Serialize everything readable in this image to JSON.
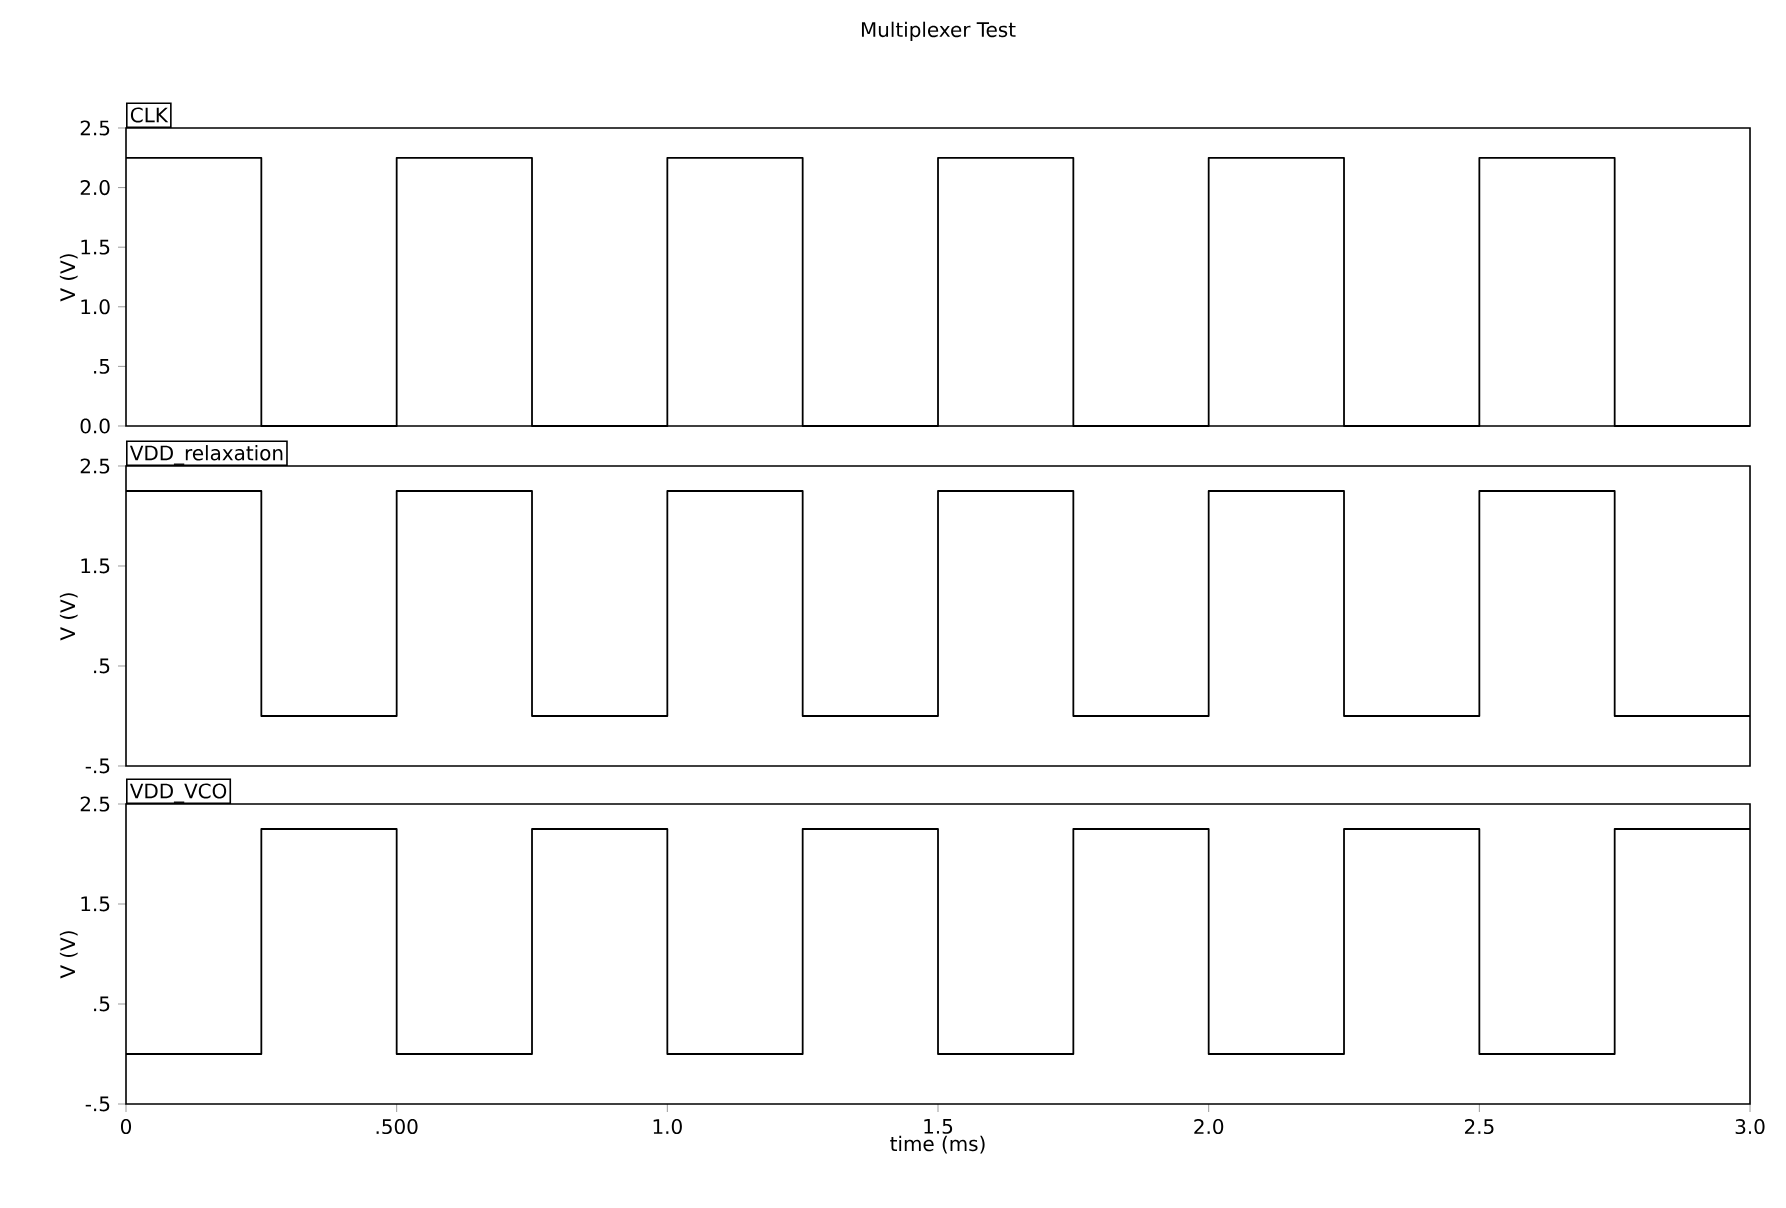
{
  "chart_data": [
    {
      "type": "step",
      "title": "Multiplexer Test",
      "ylabel": "V (V)",
      "tick_labels": "y",
      "xlim": [
        0,
        3.0
      ],
      "ylim": [
        0,
        2.5
      ],
      "yticks": [
        {
          "value": 0,
          "label": "0.0"
        },
        {
          "value": 0.5,
          "label": ".5"
        },
        {
          "value": 1.0,
          "label": "1.0"
        },
        {
          "value": 1.5,
          "label": "1.5"
        },
        {
          "value": 2.0,
          "label": "2.0"
        },
        {
          "value": 2.5,
          "label": "2.5"
        }
      ],
      "series": [
        {
          "name": "CLK",
          "color": "#000000",
          "x": [
            0,
            0.25,
            0.5,
            0.75,
            1.0,
            1.25,
            1.5,
            1.75,
            2.0,
            2.25,
            2.5,
            2.75,
            3.0
          ],
          "values": [
            2.25,
            0,
            2.25,
            0,
            2.25,
            0,
            2.25,
            0,
            2.25,
            0,
            2.25,
            0,
            0
          ]
        }
      ]
    },
    {
      "type": "step",
      "ylabel": "V (V)",
      "tick_labels": "y",
      "xlim": [
        0,
        3.0
      ],
      "ylim": [
        -0.5,
        2.5
      ],
      "yticks": [
        {
          "value": -0.5,
          "label": "-.5"
        },
        {
          "value": 0.5,
          "label": ".5"
        },
        {
          "value": 1.5,
          "label": "1.5"
        },
        {
          "value": 2.5,
          "label": "2.5"
        }
      ],
      "series": [
        {
          "name": "VDD_relaxation",
          "color": "#000000",
          "x": [
            0,
            0.25,
            0.5,
            0.75,
            1.0,
            1.25,
            1.5,
            1.75,
            2.0,
            2.25,
            2.5,
            2.75,
            3.0
          ],
          "values": [
            2.25,
            0,
            2.25,
            0,
            2.25,
            0,
            2.25,
            0,
            2.25,
            0,
            2.25,
            0,
            0
          ]
        }
      ]
    },
    {
      "type": "step",
      "ylabel": "V (V)",
      "xlabel": "time (ms)",
      "xlim": [
        0,
        3.0
      ],
      "ylim": [
        -0.5,
        2.5
      ],
      "xticks": [
        {
          "value": 0,
          "label": "0"
        },
        {
          "value": 0.5,
          "label": ".500"
        },
        {
          "value": 1.0,
          "label": "1.0"
        },
        {
          "value": 1.5,
          "label": "1.5"
        },
        {
          "value": 2.0,
          "label": "2.0"
        },
        {
          "value": 2.5,
          "label": "2.5"
        },
        {
          "value": 3.0,
          "label": "3.0"
        }
      ],
      "yticks": [
        {
          "value": -0.5,
          "label": "-.5"
        },
        {
          "value": 0.5,
          "label": ".5"
        },
        {
          "value": 1.5,
          "label": "1.5"
        },
        {
          "value": 2.5,
          "label": "2.5"
        }
      ],
      "series": [
        {
          "name": "VDD_VCO",
          "color": "#000000",
          "x": [
            0,
            0.25,
            0.5,
            0.75,
            1.0,
            1.25,
            1.5,
            1.75,
            2.0,
            2.25,
            2.5,
            2.75,
            3.0
          ],
          "values": [
            0,
            2.25,
            0,
            2.25,
            0,
            2.25,
            0,
            2.25,
            0,
            2.25,
            0,
            2.25,
            2.25
          ]
        }
      ]
    }
  ]
}
